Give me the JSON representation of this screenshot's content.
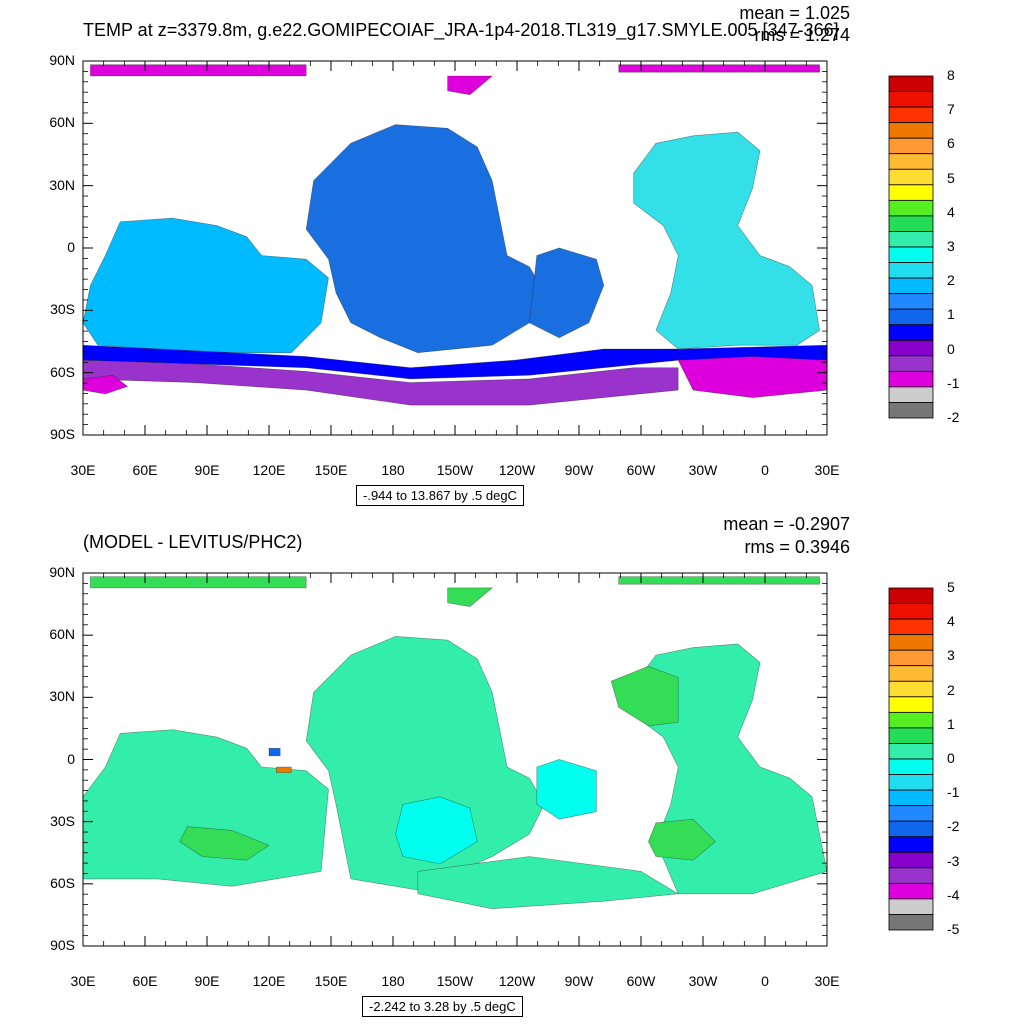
{
  "panels": [
    {
      "title": "TEMP at z=3379.8m, g.e22.GOMIPECOIAF_JRA-1p4-2018.TL319_g17.SMYLE.005 [347-366]",
      "mean_label": "mean = 1.025",
      "rms_label": "rms = 1.274",
      "contour_info": "-.944 to 13.867 by .5 degC",
      "y_ticks": [
        "90N",
        "60N",
        "30N",
        "0",
        "30S",
        "60S",
        "90S"
      ],
      "x_ticks": [
        "30E",
        "60E",
        "90E",
        "120E",
        "150E",
        "180",
        "150W",
        "120W",
        "90W",
        "60W",
        "30W",
        "0",
        "30E"
      ],
      "colorbar_labels": [
        "8",
        "7",
        "6",
        "5",
        "4",
        "3",
        "2",
        "1",
        "0",
        "-1",
        "-2"
      ],
      "colorbar_colors": [
        "#cc0000",
        "#ee1100",
        "#ff3300",
        "#ee7700",
        "#ff9933",
        "#ffbb33",
        "#ffdd33",
        "#ffff00",
        "#55ee22",
        "#22dd55",
        "#33eeaa",
        "#00ffee",
        "#22ddee",
        "#00bbff",
        "#2288ff",
        "#1166ee",
        "#0000ff",
        "#8800cc",
        "#9933cc",
        "#dd00dd",
        "#cccccc",
        "#777777"
      ]
    },
    {
      "title": "(MODEL - LEVITUS/PHC2)",
      "mean_label": "mean = -0.2907",
      "rms_label": "rms = 0.3946",
      "contour_info": "-2.242 to 3.28 by .5 degC",
      "y_ticks": [
        "90N",
        "60N",
        "30N",
        "0",
        "30S",
        "60S",
        "90S"
      ],
      "x_ticks": [
        "30E",
        "60E",
        "90E",
        "120E",
        "150E",
        "180",
        "150W",
        "120W",
        "90W",
        "60W",
        "30W",
        "0",
        "30E"
      ],
      "colorbar_labels": [
        "5",
        "4",
        "3",
        "2",
        "1",
        "0",
        "-1",
        "-2",
        "-3",
        "-4",
        "-5"
      ],
      "colorbar_colors": [
        "#cc0000",
        "#ee1100",
        "#ff3300",
        "#ee7700",
        "#ff9933",
        "#ffbb33",
        "#ffdd33",
        "#ffff00",
        "#55ee22",
        "#22dd55",
        "#33eeaa",
        "#00ffee",
        "#22ddee",
        "#00bbff",
        "#2288ff",
        "#1166ee",
        "#0000ff",
        "#8800cc",
        "#9933cc",
        "#dd00dd",
        "#cccccc",
        "#777777"
      ]
    }
  ],
  "field_colors": {
    "top_deep": "#1a6fe0",
    "top_blue": "#0000ff",
    "top_purple": "#9933cc",
    "top_magenta": "#dd00dd",
    "top_lightblue": "#00bbff",
    "top_cyan": "#33e0e8",
    "bottom_main": "#33eeaa",
    "bottom_cyan": "#00ffee",
    "bottom_green": "#33dd55",
    "bottom_blue": "#1166ee",
    "bottom_orange": "#ee7700"
  }
}
